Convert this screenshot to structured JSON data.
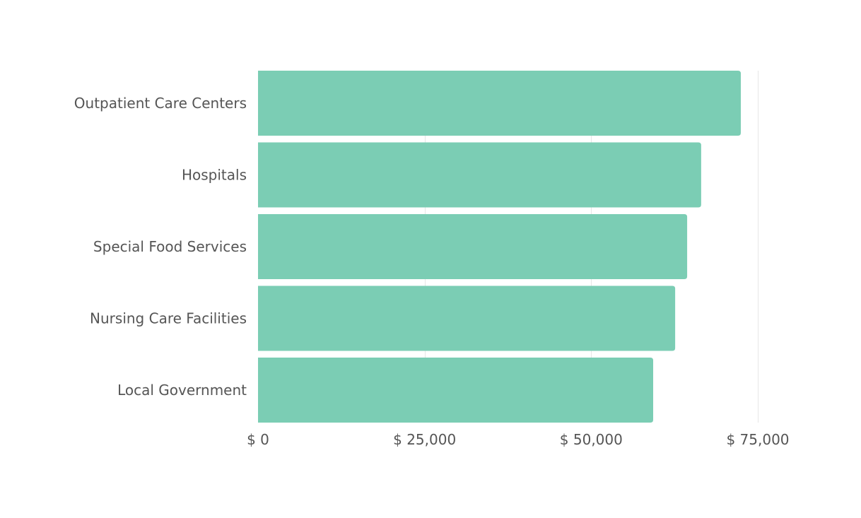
{
  "chart_data": {
    "type": "bar",
    "orientation": "horizontal",
    "categories": [
      "Outpatient Care Centers",
      "Hospitals",
      "Special Food Services",
      "Nursing Care Facilities",
      "Local Government"
    ],
    "values": [
      72450,
      66500,
      64400,
      62600,
      59300
    ],
    "xlim": [
      0,
      75000
    ],
    "xticks": [
      0,
      25000,
      50000,
      75000
    ],
    "xtick_labels": [
      "$ 0",
      "$ 25,000",
      "$ 50,000",
      "$ 75,000"
    ],
    "grid": true,
    "title": "",
    "xlabel": "",
    "ylabel": "",
    "colors": {
      "bar": "#7BCDB4",
      "grid": "#e6e6e6",
      "text": "#555555"
    }
  }
}
